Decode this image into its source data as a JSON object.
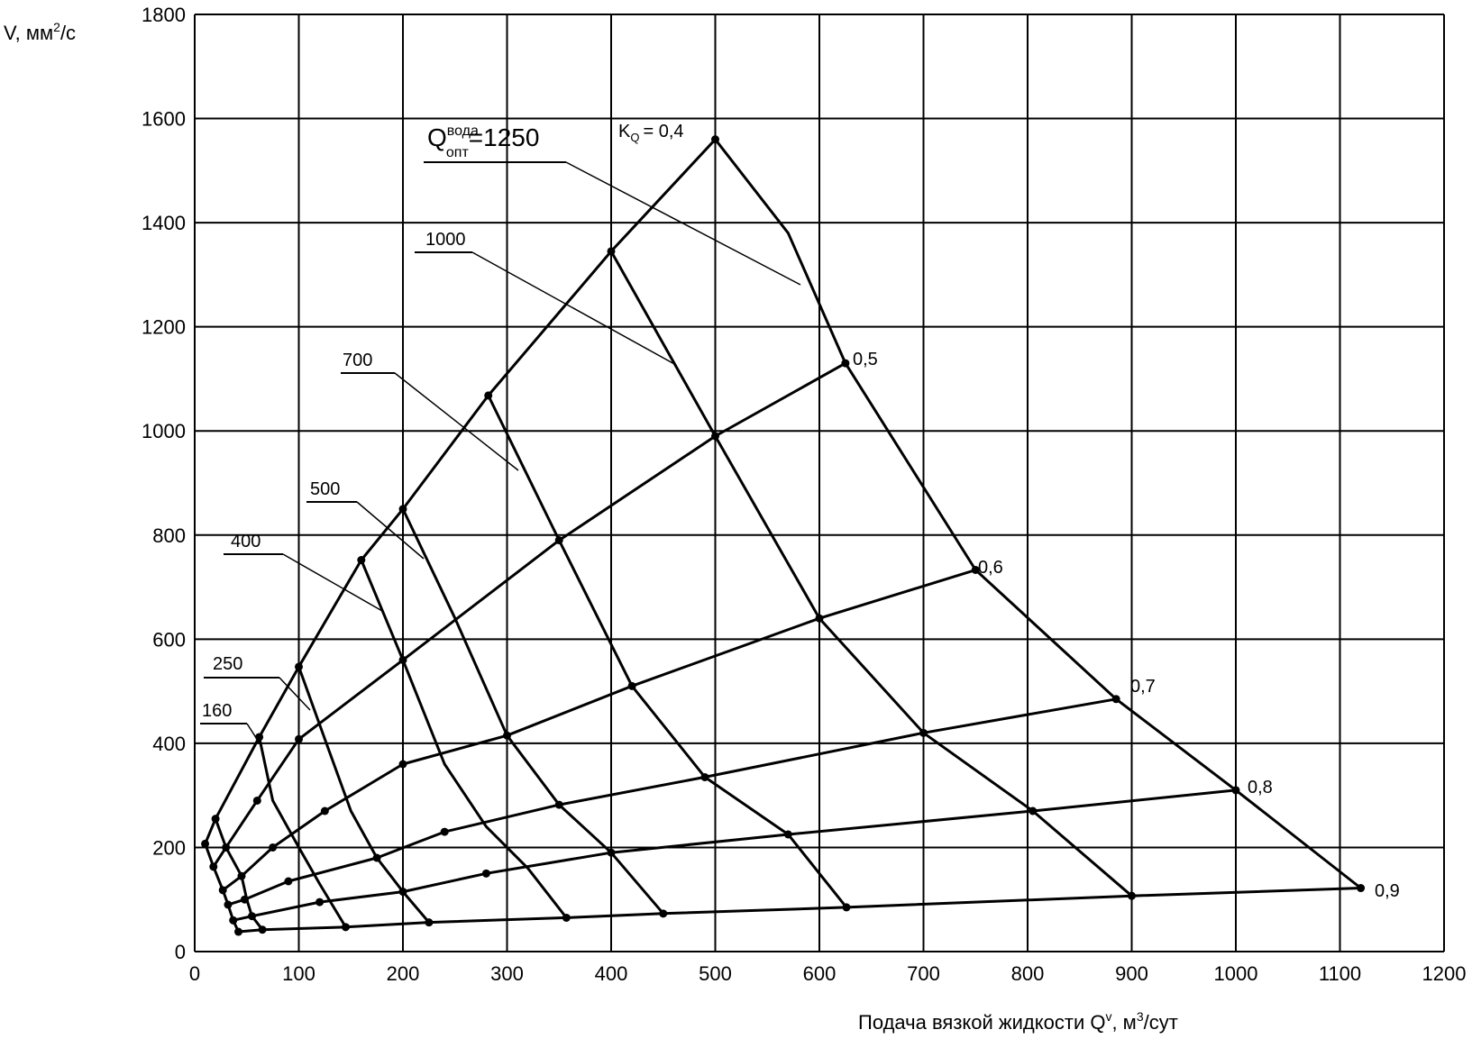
{
  "chart_data": {
    "type": "line",
    "title": "",
    "xlabel": "Подача вязкой жидкости Q",
    "xlabel_sup": "v",
    "xlabel_unit": ", м",
    "xlabel_unit_sup": "3",
    "xlabel_tail": "/сут",
    "ylabel": "V, мм",
    "ylabel_sup": "2",
    "ylabel_tail": "/с",
    "xlim": [
      0,
      1200
    ],
    "ylim": [
      0,
      1800
    ],
    "xticks": [
      "0",
      "100",
      "200",
      "300",
      "400",
      "500",
      "600",
      "700",
      "800",
      "900",
      "1000",
      "1100",
      "1200"
    ],
    "yticks": [
      "0",
      "200",
      "400",
      "600",
      "800",
      "1000",
      "1200",
      "1400",
      "1600",
      "1800"
    ],
    "grid": true,
    "kq_prefix": "K",
    "kq_sub": "Q",
    "kq_labels": [
      "= 0,4",
      "0,5",
      "0,6",
      "0,7",
      "0,8",
      "0,9"
    ],
    "q_prefix": "Q",
    "q_sup": "вода",
    "q_sub": "опт",
    "flow_labels": [
      "=1250",
      "1000",
      "700",
      "500",
      "400",
      "250",
      "160"
    ],
    "series": [
      {
        "kq": "0,4",
        "points": [
          [
            10,
            207
          ],
          [
            20,
            255
          ],
          [
            62,
            412
          ],
          [
            100,
            547
          ],
          [
            160,
            752
          ],
          [
            200,
            850
          ],
          [
            282,
            1068
          ],
          [
            400,
            1345
          ],
          [
            500,
            1560
          ]
        ]
      },
      {
        "kq": "0,5",
        "points": [
          [
            18,
            163
          ],
          [
            30,
            200
          ],
          [
            60,
            290
          ],
          [
            100,
            408
          ],
          [
            200,
            560
          ],
          [
            350,
            790
          ],
          [
            500,
            990
          ],
          [
            625,
            1130
          ]
        ]
      },
      {
        "kq": "0,6",
        "points": [
          [
            27,
            118
          ],
          [
            45,
            145
          ],
          [
            75,
            200
          ],
          [
            125,
            270
          ],
          [
            200,
            360
          ],
          [
            300,
            415
          ],
          [
            420,
            510
          ],
          [
            600,
            640
          ],
          [
            750,
            733
          ]
        ]
      },
      {
        "kq": "0,7",
        "points": [
          [
            32,
            90
          ],
          [
            48,
            100
          ],
          [
            90,
            135
          ],
          [
            175,
            180
          ],
          [
            240,
            230
          ],
          [
            350,
            282
          ],
          [
            490,
            335
          ],
          [
            700,
            420
          ],
          [
            885,
            485
          ]
        ]
      },
      {
        "kq": "0,8",
        "points": [
          [
            37,
            60
          ],
          [
            55,
            68
          ],
          [
            120,
            95
          ],
          [
            200,
            115
          ],
          [
            280,
            150
          ],
          [
            400,
            190
          ],
          [
            570,
            225
          ],
          [
            805,
            270
          ],
          [
            1000,
            310
          ]
        ]
      },
      {
        "kq": "0,9",
        "points": [
          [
            42,
            38
          ],
          [
            65,
            42
          ],
          [
            145,
            47
          ],
          [
            225,
            56
          ],
          [
            357,
            65
          ],
          [
            450,
            73
          ],
          [
            626,
            85
          ],
          [
            900,
            107
          ],
          [
            1120,
            122
          ]
        ]
      }
    ],
    "flow_curves": [
      {
        "qopt": "1250",
        "points": [
          [
            500,
            1560
          ],
          [
            570,
            1380
          ],
          [
            625,
            1130
          ],
          [
            750,
            733
          ],
          [
            885,
            485
          ],
          [
            1000,
            310
          ],
          [
            1120,
            122
          ]
        ]
      },
      {
        "qopt": "1000",
        "points": [
          [
            400,
            1345
          ],
          [
            500,
            990
          ],
          [
            600,
            640
          ],
          [
            700,
            420
          ],
          [
            805,
            270
          ],
          [
            900,
            107
          ]
        ]
      },
      {
        "qopt": "700",
        "points": [
          [
            282,
            1068
          ],
          [
            350,
            790
          ],
          [
            420,
            510
          ],
          [
            490,
            335
          ],
          [
            570,
            225
          ],
          [
            626,
            85
          ]
        ]
      },
      {
        "qopt": "500",
        "points": [
          [
            200,
            850
          ],
          [
            250,
            640
          ],
          [
            300,
            415
          ],
          [
            350,
            282
          ],
          [
            400,
            190
          ],
          [
            450,
            73
          ]
        ]
      },
      {
        "qopt": "400",
        "points": [
          [
            160,
            752
          ],
          [
            200,
            560
          ],
          [
            240,
            360
          ],
          [
            280,
            240
          ],
          [
            320,
            160
          ],
          [
            357,
            65
          ]
        ]
      },
      {
        "qopt": "250",
        "points": [
          [
            100,
            547
          ],
          [
            125,
            408
          ],
          [
            150,
            270
          ],
          [
            175,
            180
          ],
          [
            200,
            115
          ],
          [
            225,
            56
          ]
        ]
      },
      {
        "qopt": "160",
        "points": [
          [
            62,
            412
          ],
          [
            75,
            290
          ],
          [
            100,
            200
          ],
          [
            120,
            130
          ],
          [
            145,
            47
          ]
        ]
      },
      {
        "qopt": "",
        "points": [
          [
            20,
            255
          ],
          [
            30,
            200
          ],
          [
            45,
            145
          ],
          [
            50,
            100
          ],
          [
            55,
            68
          ],
          [
            65,
            42
          ]
        ]
      },
      {
        "qopt": "",
        "points": [
          [
            10,
            207
          ],
          [
            18,
            163
          ],
          [
            27,
            118
          ],
          [
            32,
            90
          ],
          [
            37,
            60
          ],
          [
            42,
            38
          ]
        ]
      }
    ]
  }
}
